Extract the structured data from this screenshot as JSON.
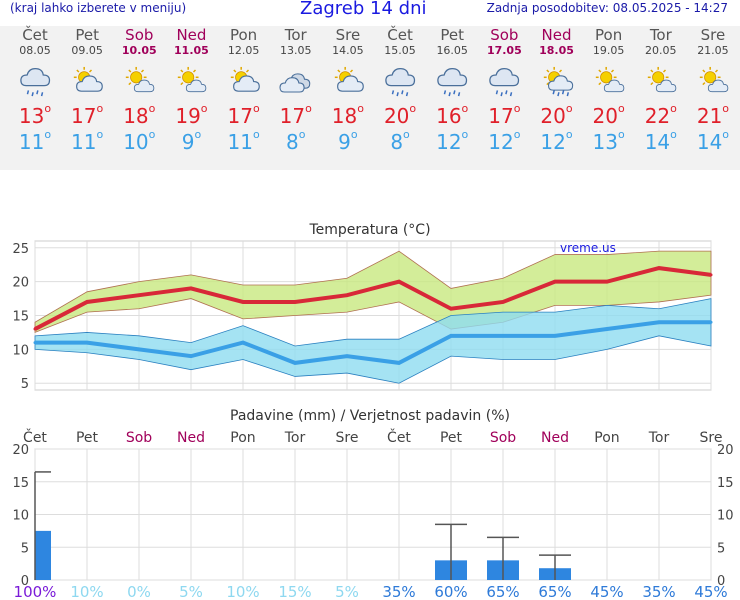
{
  "header": {
    "menu_hint": "(kraj lahko izberete v meniju)",
    "title": "Zagreb 14 dni",
    "updated": "Zadnja posodobitev: 08.05.2025 - 14:27"
  },
  "days": [
    {
      "name": "Čet",
      "date": "08.05",
      "weekend": false,
      "icon": "rain-cloud-icon",
      "max": "13",
      "min": "11"
    },
    {
      "name": "Pet",
      "date": "09.05",
      "weekend": false,
      "icon": "sun-cloud-icon",
      "max": "17",
      "min": "11"
    },
    {
      "name": "Sob",
      "date": "10.05",
      "weekend": true,
      "icon": "sun-small-cloud-icon",
      "max": "18",
      "min": "10"
    },
    {
      "name": "Ned",
      "date": "11.05",
      "weekend": true,
      "icon": "sun-small-cloud-icon",
      "max": "19",
      "min": "9"
    },
    {
      "name": "Pon",
      "date": "12.05",
      "weekend": false,
      "icon": "sun-cloud-icon",
      "max": "17",
      "min": "11"
    },
    {
      "name": "Tor",
      "date": "13.05",
      "weekend": false,
      "icon": "cloud-icon",
      "max": "17",
      "min": "8"
    },
    {
      "name": "Sre",
      "date": "14.05",
      "weekend": false,
      "icon": "sun-cloud-icon",
      "max": "18",
      "min": "9"
    },
    {
      "name": "Čet",
      "date": "15.05",
      "weekend": false,
      "icon": "rain-cloud-icon",
      "max": "20",
      "min": "8"
    },
    {
      "name": "Pet",
      "date": "16.05",
      "weekend": false,
      "icon": "rain-cloud-icon",
      "max": "16",
      "min": "12"
    },
    {
      "name": "Sob",
      "date": "17.05",
      "weekend": true,
      "icon": "rain-cloud-icon",
      "max": "17",
      "min": "12"
    },
    {
      "name": "Ned",
      "date": "18.05",
      "weekend": true,
      "icon": "sun-rain-icon",
      "max": "20",
      "min": "12"
    },
    {
      "name": "Pon",
      "date": "19.05",
      "weekend": false,
      "icon": "sun-small-cloud-icon",
      "max": "20",
      "min": "13"
    },
    {
      "name": "Tor",
      "date": "20.05",
      "weekend": false,
      "icon": "sun-small-cloud-icon",
      "max": "22",
      "min": "14"
    },
    {
      "name": "Sre",
      "date": "21.05",
      "weekend": false,
      "icon": "sun-small-cloud-icon",
      "max": "21",
      "min": "14"
    }
  ],
  "colors": {
    "max": "#e0202a",
    "min": "#3aa0e6",
    "maxband": "#c8e880",
    "minband": "#8edcf0",
    "precip": "#2e86e0",
    "weekend": "#a0005a"
  },
  "chart_data": [
    {
      "type": "line",
      "title": "Temperatura (°C)",
      "watermark": "vreme.us",
      "categories": [
        "Čet",
        "Pet",
        "Sob",
        "Ned",
        "Pon",
        "Tor",
        "Sre",
        "Čet",
        "Pet",
        "Sob",
        "Ned",
        "Pon",
        "Tor",
        "Sre"
      ],
      "ylim": [
        4,
        26
      ],
      "yticks": [
        5,
        10,
        15,
        20,
        25
      ],
      "series": [
        {
          "role": "max",
          "values": [
            13,
            17,
            18,
            19,
            17,
            17,
            18,
            20,
            16,
            17,
            20,
            20,
            22,
            21
          ],
          "band_low": [
            12.5,
            15.5,
            16,
            17.5,
            14.5,
            15,
            15.5,
            17,
            13,
            14,
            16.5,
            16.5,
            17,
            18
          ],
          "band_high": [
            14,
            18.5,
            20,
            21,
            19.5,
            19.5,
            20.5,
            24.5,
            19,
            20.5,
            24,
            24,
            24.5,
            24.5
          ]
        },
        {
          "role": "min",
          "values": [
            11,
            11,
            10,
            9,
            11,
            8,
            9,
            8,
            12,
            12,
            12,
            13,
            14,
            14
          ],
          "band_low": [
            10,
            9.5,
            8.5,
            7,
            8.5,
            6,
            6.5,
            5,
            9,
            8.5,
            8.5,
            10,
            12,
            10.5
          ],
          "band_high": [
            12,
            12.5,
            12,
            11,
            13.5,
            10.5,
            11.5,
            11.5,
            15,
            15.5,
            15.5,
            16.5,
            16,
            17.5
          ]
        }
      ]
    },
    {
      "type": "bar",
      "title": "Padavine (mm) / Verjetnost padavin (%)",
      "categories": [
        "Čet",
        "Pet",
        "Sob",
        "Ned",
        "Pon",
        "Tor",
        "Sre",
        "Čet",
        "Pet",
        "Sob",
        "Ned",
        "Pon",
        "Tor",
        "Sre"
      ],
      "ylim": [
        0,
        20
      ],
      "yticks": [
        0,
        5,
        10,
        15,
        20
      ],
      "values": [
        7.5,
        0,
        0,
        0,
        0,
        0,
        0,
        0,
        3,
        3,
        1.8,
        0,
        0,
        0
      ],
      "error_high": [
        16.5,
        0,
        0,
        0,
        0,
        0,
        0,
        0,
        8.5,
        6.5,
        3.8,
        0,
        0,
        0
      ],
      "probability": [
        "100%",
        "10%",
        "0%",
        "5%",
        "10%",
        "15%",
        "5%",
        "35%",
        "60%",
        "65%",
        "65%",
        "45%",
        "35%",
        "45%"
      ]
    }
  ]
}
